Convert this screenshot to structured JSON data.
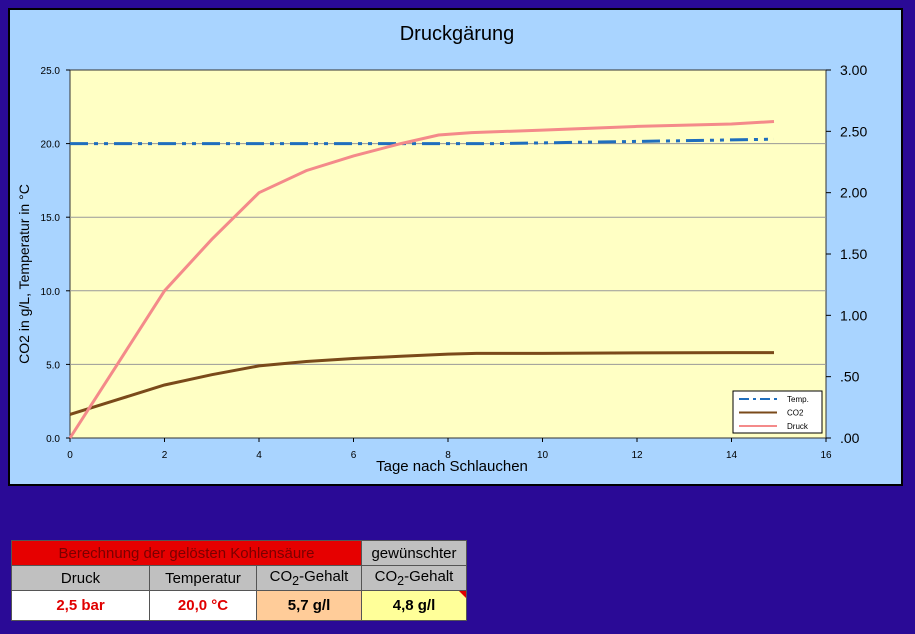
{
  "colors": {
    "temp": "#1f6ebd",
    "co2": "#7a4a1a",
    "druck": "#f48a8a",
    "plot_bg": "#ffffc4"
  },
  "chart_data": {
    "type": "line",
    "title": "Druckgärung",
    "xlabel": "Tage nach Schlauchen",
    "ylabel": "CO2 in g/L, Temperatur in °C",
    "y2label": "",
    "xlim": [
      0,
      16
    ],
    "ylim": [
      0,
      25
    ],
    "y2lim": [
      0,
      3
    ],
    "x_ticks": [
      "0",
      "2",
      "4",
      "6",
      "8",
      "10",
      "12",
      "14",
      "16"
    ],
    "y_ticks": [
      "0.0",
      "5.0",
      "10.0",
      "15.0",
      "20.0",
      "25.0"
    ],
    "y2_ticks": [
      ".00",
      ".50",
      "1.00",
      "1.50",
      "2.00",
      "2.50",
      "3.00"
    ],
    "grid": true,
    "legend_position": "bottom-right",
    "series": [
      {
        "name": "Temp.",
        "axis": "left",
        "style": "dashdot",
        "x": [
          0,
          2,
          4,
          6,
          8,
          9,
          10,
          11,
          12,
          13,
          14,
          14.9
        ],
        "y": [
          20.0,
          20.0,
          20.0,
          20.0,
          20.0,
          20.0,
          20.05,
          20.1,
          20.15,
          20.2,
          20.25,
          20.3
        ]
      },
      {
        "name": "CO2",
        "axis": "left",
        "style": "solid",
        "x": [
          0,
          1,
          2,
          3,
          4,
          5,
          6,
          7,
          8,
          8.6,
          10,
          12,
          14,
          14.9
        ],
        "y": [
          1.6,
          2.6,
          3.6,
          4.3,
          4.9,
          5.2,
          5.4,
          5.55,
          5.7,
          5.75,
          5.75,
          5.78,
          5.8,
          5.8
        ]
      },
      {
        "name": "Druck",
        "axis": "right",
        "style": "solid",
        "x": [
          0,
          1,
          2,
          3,
          4,
          5,
          6,
          7,
          7.8,
          8.5,
          10,
          12,
          14,
          14.9
        ],
        "y": [
          0.0,
          0.6,
          1.2,
          1.62,
          2.0,
          2.18,
          2.3,
          2.4,
          2.47,
          2.49,
          2.51,
          2.54,
          2.56,
          2.58
        ]
      }
    ]
  },
  "table": {
    "title": "Berechnung der gelösten Kohlensäure",
    "wish_label": "gewünschter",
    "col_druck": "Druck",
    "col_temp": "Temperatur",
    "col_co2": "-Gehalt",
    "col_co2_prefix": "CO",
    "col_co2_sub": "2",
    "col_wish": "-Gehalt",
    "col_wish_prefix": "CO",
    "col_wish_sub": "2",
    "val_druck": "2,5 bar",
    "val_temp": "20,0 °C",
    "val_co2": "5,7 g/l",
    "val_wish": "4,8 g/l"
  }
}
